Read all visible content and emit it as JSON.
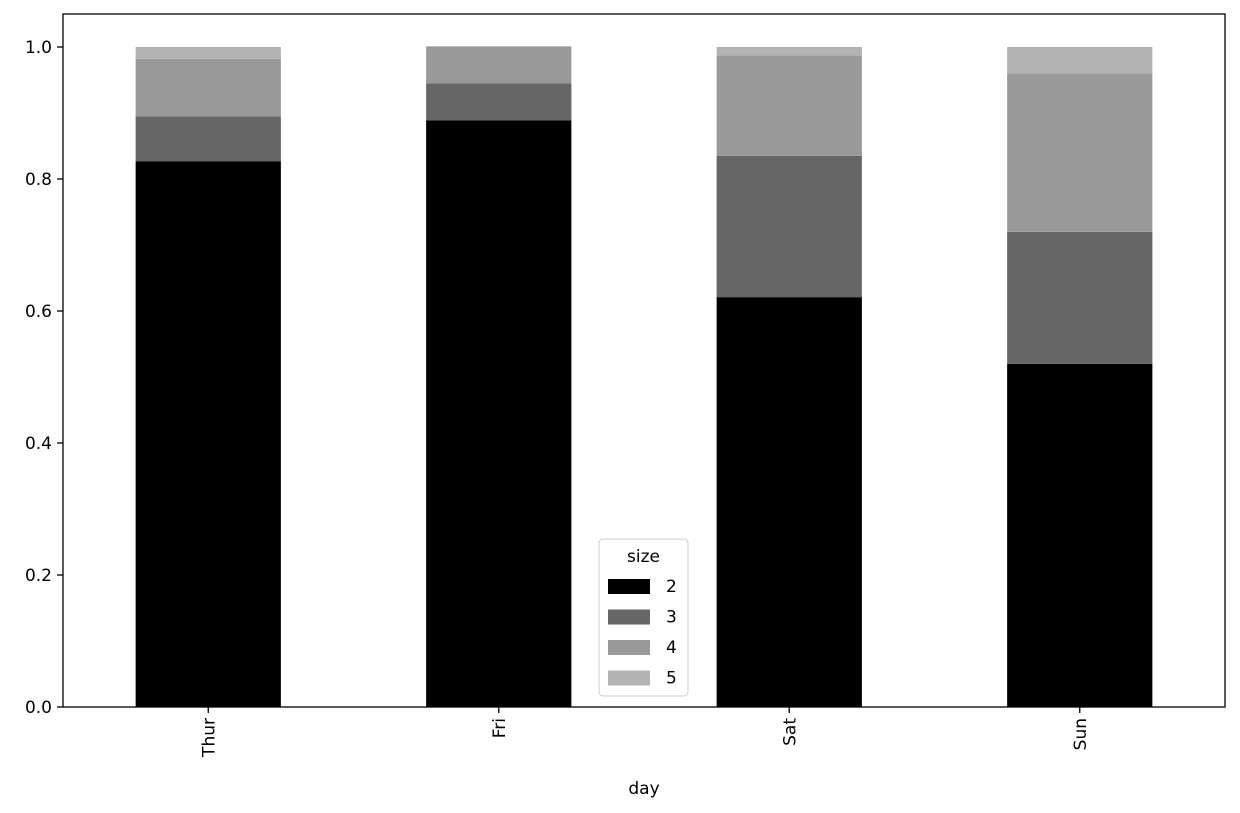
{
  "chart_data": {
    "type": "bar",
    "stacked": true,
    "categories": [
      "Thur",
      "Fri",
      "Sat",
      "Sun"
    ],
    "series": [
      {
        "name": "2",
        "color": "#000000",
        "values": [
          0.827,
          0.889,
          0.621,
          0.52
        ]
      },
      {
        "name": "3",
        "color": "#666666",
        "values": [
          0.068,
          0.056,
          0.214,
          0.2
        ]
      },
      {
        "name": "4",
        "color": "#999999",
        "values": [
          0.087,
          0.056,
          0.152,
          0.24
        ]
      },
      {
        "name": "5",
        "color": "#b3b3b3",
        "values": [
          0.018,
          0.0,
          0.013,
          0.04
        ]
      }
    ],
    "xlabel": "day",
    "ylabel": "",
    "ylim": [
      0,
      1.05
    ],
    "yticks": [
      0.0,
      0.2,
      0.4,
      0.6,
      0.8,
      1.0
    ],
    "ytick_labels": [
      "0.0",
      "0.2",
      "0.4",
      "0.6",
      "0.8",
      "1.0"
    ],
    "grid": false,
    "legend": {
      "title": "size",
      "placement": "bottom-center"
    }
  }
}
